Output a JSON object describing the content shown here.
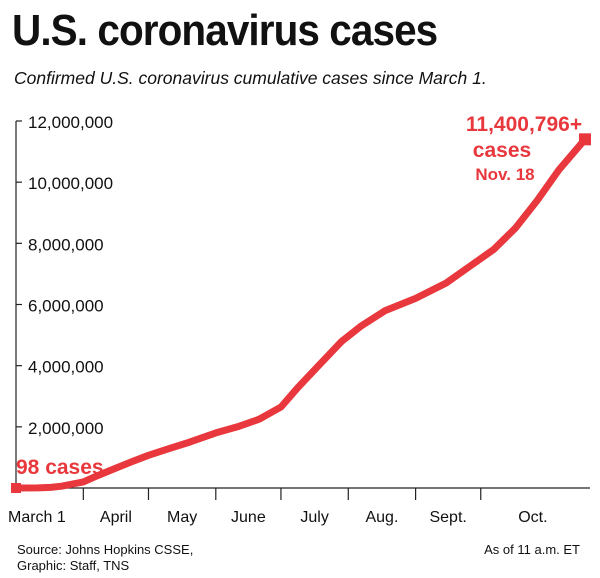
{
  "header": {
    "title": "U.S. coronavirus cases",
    "subtitle": "Confirmed U.S. coronavirus cumulative cases since March 1."
  },
  "footer": {
    "source_line1": "Source: Johns Hopkins CSSE,",
    "source_line2": "Graphic: Staff, TNS",
    "timestamp": "As of 11 a.m. ET"
  },
  "colors": {
    "series": "#e8383d",
    "axis": "#222222",
    "text": "#111111"
  },
  "chart_data": {
    "type": "line",
    "title": "U.S. coronavirus cases",
    "subtitle": "Confirmed U.S. coronavirus cumulative cases since March 1.",
    "xlabel": "",
    "ylabel": "",
    "ylim": [
      0,
      12000000
    ],
    "yticks": [
      2000000,
      4000000,
      6000000,
      8000000,
      10000000,
      12000000
    ],
    "ytick_labels": [
      "2,000,000",
      "4,000,000",
      "6,000,000",
      "8,000,000",
      "10,000,000",
      "12,000,000"
    ],
    "xlim_days": [
      0,
      262
    ],
    "x_month_ticks": [
      {
        "label": "March 1",
        "day": 0
      },
      {
        "label": "April",
        "day": 31
      },
      {
        "label": "May",
        "day": 61
      },
      {
        "label": "June",
        "day": 92
      },
      {
        "label": "July",
        "day": 122
      },
      {
        "label": "Aug.",
        "day": 153
      },
      {
        "label": "Sept.",
        "day": 184
      },
      {
        "label": "Oct.",
        "day": 214
      }
    ],
    "grid": false,
    "series": [
      {
        "points": [
          [
            0,
            98
          ],
          [
            10,
            2000
          ],
          [
            16,
            20000
          ],
          [
            21,
            60000
          ],
          [
            26,
            130000
          ],
          [
            31,
            200000
          ],
          [
            38,
            420000
          ],
          [
            46,
            650000
          ],
          [
            54,
            880000
          ],
          [
            61,
            1070000
          ],
          [
            70,
            1280000
          ],
          [
            80,
            1500000
          ],
          [
            92,
            1800000
          ],
          [
            102,
            2000000
          ],
          [
            112,
            2250000
          ],
          [
            122,
            2650000
          ],
          [
            130,
            3300000
          ],
          [
            140,
            4050000
          ],
          [
            150,
            4800000
          ],
          [
            159,
            5300000
          ],
          [
            170,
            5800000
          ],
          [
            184,
            6200000
          ],
          [
            198,
            6700000
          ],
          [
            210,
            7300000
          ],
          [
            220,
            7800000
          ],
          [
            230,
            8500000
          ],
          [
            240,
            9400000
          ],
          [
            250,
            10400000
          ],
          [
            262,
            11400796
          ]
        ]
      }
    ],
    "annotations": {
      "start_label": "98 cases",
      "end_value": "11,400,796+",
      "end_unit": "cases",
      "end_date": "Nov. 18"
    }
  }
}
